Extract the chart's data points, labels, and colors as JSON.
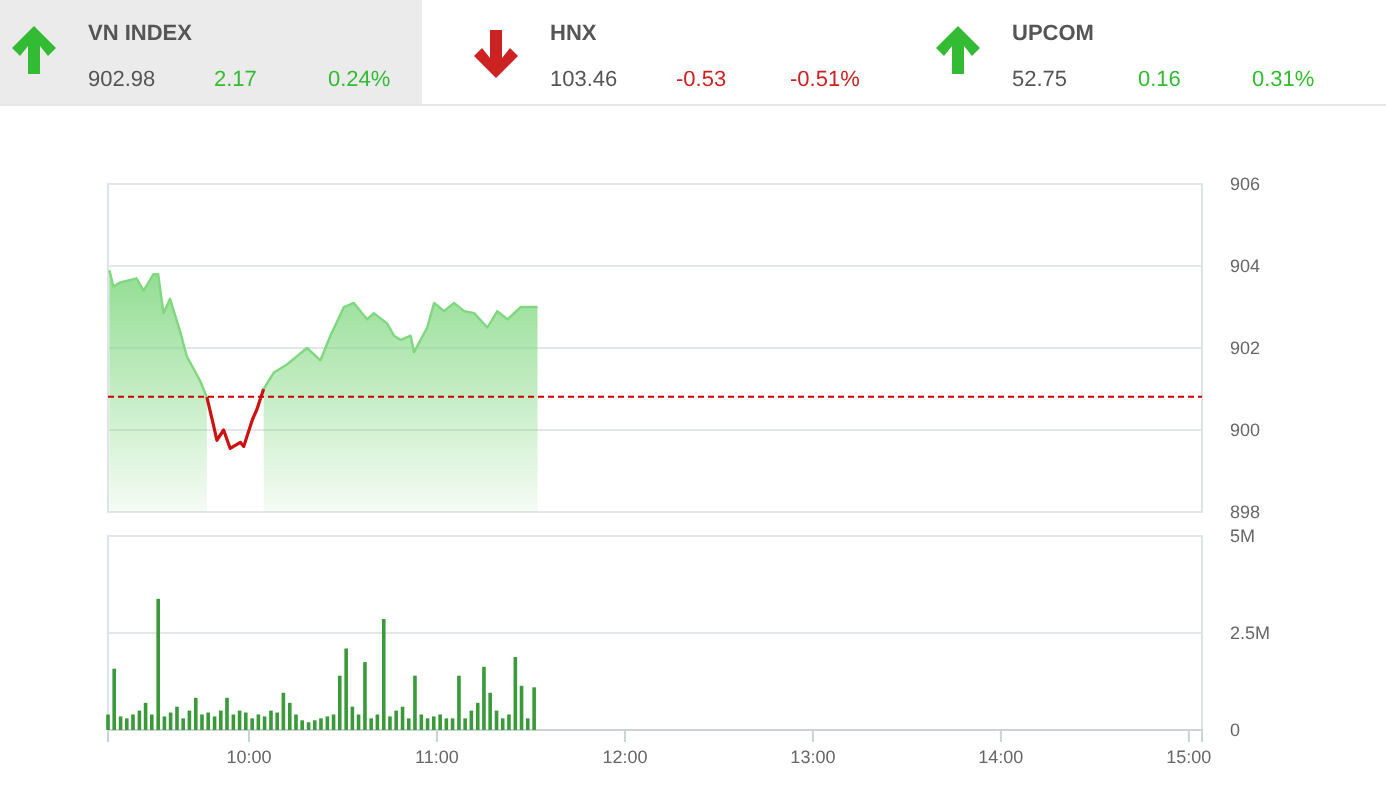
{
  "chart_data": [
    {
      "type": "other",
      "annotations": [
        "VN INDEX",
        "902.98",
        "2.17",
        "0.24%",
        "HNX",
        "103.46",
        "-0.53",
        "-0.51%",
        "UPCOM",
        "52.75",
        "0.16",
        "0.31%"
      ]
    },
    {
      "type": "area",
      "xlim": [
        9.25,
        15.07
      ],
      "ylim": [
        898,
        906
      ],
      "yticks": [
        898,
        900,
        902,
        904,
        906
      ],
      "grid": "y",
      "tick_labels": "y",
      "ref_lines": [
        {
          "axis": "y",
          "value": 900.81,
          "color": "#cc0000",
          "line_style": "dashed"
        }
      ],
      "series": [
        {
          "type": "area",
          "color": "#7fd77f",
          "x": [
            9.257,
            9.279,
            9.314,
            9.402,
            9.439,
            9.492,
            9.517,
            9.545,
            9.58,
            9.634,
            9.669,
            9.74,
            9.776,
            9.812,
            9.829,
            9.865,
            9.9,
            9.954,
            9.972,
            10.018,
            10.042,
            10.078,
            10.132,
            10.202,
            10.309,
            10.38,
            10.433,
            10.505,
            10.558,
            10.628,
            10.664,
            10.735,
            10.771,
            10.807,
            10.86,
            10.878,
            10.948,
            10.985,
            11.038,
            11.091,
            11.145,
            11.198,
            11.268,
            11.321,
            11.375,
            11.446,
            11.535
          ],
          "values": [
            903.9,
            903.5,
            903.6,
            903.7,
            903.4,
            903.8,
            903.8,
            902.85,
            903.2,
            902.4,
            901.8,
            901.2,
            900.8,
            null,
            null,
            null,
            null,
            null,
            null,
            null,
            null,
            901.0,
            901.4,
            901.6,
            902.0,
            901.7,
            902.3,
            903.0,
            903.1,
            902.7,
            902.85,
            902.6,
            902.3,
            902.2,
            902.3,
            901.9,
            902.5,
            903.1,
            902.9,
            903.1,
            902.9,
            902.85,
            902.5,
            902.9,
            902.7,
            903.0,
            903.0
          ]
        },
        {
          "type": "line",
          "color": "#cc1111",
          "x": [
            9.776,
            9.812,
            9.829,
            9.865,
            9.9,
            9.954,
            9.972,
            10.018,
            10.042,
            10.078
          ],
          "values": [
            900.8,
            900.1,
            899.75,
            900.0,
            899.55,
            899.7,
            899.6,
            900.25,
            900.5,
            901.0
          ]
        }
      ]
    },
    {
      "type": "bar",
      "xlim": [
        9.25,
        15.07
      ],
      "ylim": [
        0,
        5
      ],
      "yticks": [
        {
          "value": 0,
          "label": "0"
        },
        {
          "value": 2.5,
          "label": "2.5M"
        },
        {
          "value": 5,
          "label": "5M"
        }
      ],
      "xticks": [
        {
          "value": 10,
          "label": "10:00"
        },
        {
          "value": 11,
          "label": "11:00"
        },
        {
          "value": 12,
          "label": "12:00"
        },
        {
          "value": 13,
          "label": "13:00"
        },
        {
          "value": 14,
          "label": "14:00"
        },
        {
          "value": 15,
          "label": "15:00"
        }
      ],
      "grid": "y",
      "series": [
        {
          "type": "bar",
          "color": "#3a9a3a",
          "x": [
            9.25,
            9.283,
            9.317,
            9.35,
            9.383,
            9.417,
            9.45,
            9.483,
            9.517,
            9.55,
            9.583,
            9.617,
            9.65,
            9.683,
            9.717,
            9.75,
            9.783,
            9.817,
            9.85,
            9.883,
            9.917,
            9.95,
            9.983,
            10.017,
            10.05,
            10.083,
            10.117,
            10.15,
            10.183,
            10.217,
            10.25,
            10.283,
            10.317,
            10.35,
            10.383,
            10.417,
            10.45,
            10.483,
            10.517,
            10.55,
            10.583,
            10.617,
            10.65,
            10.683,
            10.717,
            10.75,
            10.783,
            10.817,
            10.85,
            10.883,
            10.917,
            10.95,
            10.983,
            11.017,
            11.05,
            11.083,
            11.117,
            11.15,
            11.183,
            11.217,
            11.25,
            11.283,
            11.317,
            11.35,
            11.383,
            11.417,
            11.45,
            11.483,
            11.517
          ],
          "values": [
            0.4,
            1.58,
            0.35,
            0.3,
            0.4,
            0.5,
            0.7,
            0.4,
            3.38,
            0.35,
            0.45,
            0.6,
            0.3,
            0.5,
            0.83,
            0.4,
            0.45,
            0.35,
            0.5,
            0.83,
            0.4,
            0.5,
            0.45,
            0.3,
            0.4,
            0.35,
            0.5,
            0.45,
            0.96,
            0.7,
            0.4,
            0.25,
            0.2,
            0.25,
            0.3,
            0.35,
            0.4,
            1.4,
            2.1,
            0.6,
            0.4,
            1.75,
            0.3,
            0.4,
            2.86,
            0.35,
            0.5,
            0.6,
            0.3,
            1.4,
            0.4,
            0.3,
            0.35,
            0.4,
            0.3,
            0.3,
            1.4,
            0.3,
            0.5,
            0.7,
            1.63,
            0.96,
            0.5,
            0.3,
            0.4,
            1.88,
            1.14,
            0.3,
            1.1
          ]
        }
      ]
    }
  ]
}
